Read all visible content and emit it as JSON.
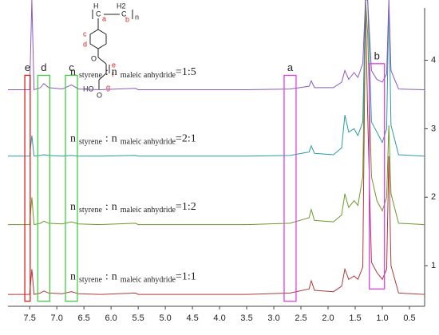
{
  "chart_data": {
    "type": "line",
    "x": [
      7.9,
      7.6,
      7.5,
      7.46,
      7.42,
      7.3,
      7.24,
      7.15,
      6.9,
      6.73,
      6.6,
      6.2,
      5.55,
      5.5,
      4.6,
      3.5,
      2.7,
      2.35,
      2.31,
      2.25,
      1.9,
      1.75,
      1.69,
      1.62,
      1.52,
      1.45,
      1.36,
      1.31,
      1.27,
      1.2,
      1.1,
      1.0,
      0.92,
      0.88,
      0.84,
      0.7,
      0.22
    ],
    "series": [
      {
        "name": "1:1",
        "color": "#b03a3a",
        "values": [
          0.58,
          0.58,
          0.58,
          0.95,
          0.58,
          0.6,
          0.63,
          0.6,
          0.59,
          0.62,
          0.59,
          0.58,
          0.6,
          0.58,
          0.58,
          0.58,
          0.6,
          0.66,
          0.78,
          0.64,
          0.62,
          0.7,
          0.95,
          0.8,
          0.85,
          0.8,
          0.98,
          4.88,
          3.2,
          1.05,
          0.9,
          0.8,
          0.95,
          2.6,
          1.0,
          0.6,
          0.58
        ]
      },
      {
        "name": "1:2",
        "color": "#6a9a2a",
        "values": [
          1.6,
          1.6,
          1.6,
          2.0,
          1.6,
          1.62,
          1.65,
          1.62,
          1.61,
          1.64,
          1.61,
          1.6,
          1.62,
          1.6,
          1.6,
          1.6,
          1.62,
          1.7,
          1.82,
          1.66,
          1.64,
          1.74,
          2.05,
          1.85,
          1.95,
          1.88,
          2.3,
          4.88,
          4.4,
          2.3,
          1.95,
          1.8,
          2.0,
          3.05,
          2.05,
          1.62,
          1.6
        ]
      },
      {
        "name": "2:1",
        "color": "#2a9aa0",
        "values": [
          2.6,
          2.6,
          2.6,
          2.9,
          2.6,
          2.61,
          2.62,
          2.61,
          2.6,
          2.61,
          2.6,
          2.6,
          2.61,
          2.6,
          2.6,
          2.6,
          2.61,
          2.66,
          2.75,
          2.64,
          2.62,
          2.72,
          3.2,
          2.95,
          3.0,
          2.9,
          3.1,
          4.88,
          4.88,
          3.1,
          2.95,
          2.8,
          3.0,
          4.88,
          3.05,
          2.62,
          2.6
        ]
      },
      {
        "name": "1:5",
        "color": "#8a5ac0",
        "values": [
          3.57,
          3.57,
          3.57,
          4.88,
          3.57,
          3.6,
          3.66,
          3.6,
          3.58,
          3.64,
          3.58,
          3.57,
          3.59,
          3.57,
          3.57,
          3.57,
          3.58,
          3.62,
          3.7,
          3.6,
          3.6,
          3.68,
          3.85,
          3.72,
          3.82,
          3.75,
          3.95,
          4.88,
          4.88,
          3.85,
          3.72,
          3.68,
          3.8,
          4.88,
          3.85,
          3.58,
          3.57
        ]
      }
    ],
    "ratio_text": {
      "n": "n",
      "first": "styrene",
      "sep": ":",
      "second": "maleic anhydride",
      "eq": "="
    },
    "boxes": [
      {
        "label": "e",
        "color": "#e02020",
        "x": [
          7.59,
          7.49
        ],
        "y": [
          0.48,
          3.78
        ]
      },
      {
        "label": "d",
        "color": "#40d040",
        "x": [
          7.35,
          7.13
        ],
        "y": [
          0.48,
          3.78
        ]
      },
      {
        "label": "c",
        "color": "#40d040",
        "x": [
          6.84,
          6.62
        ],
        "y": [
          0.48,
          3.78
        ]
      },
      {
        "label": "a",
        "color": "#e040e0",
        "x": [
          2.81,
          2.59
        ],
        "y": [
          0.48,
          3.78
        ]
      },
      {
        "label": "b",
        "color": "#e040e0",
        "x": [
          1.24,
          0.96
        ],
        "y": [
          0.66,
          3.95
        ]
      }
    ],
    "structure": {
      "atoms": [
        "H",
        "C",
        "H2",
        "C",
        "n",
        "HO",
        "O",
        "O"
      ],
      "positions": [
        "a",
        "b",
        "c",
        "d",
        "e",
        "f",
        "g"
      ]
    },
    "xlim": [
      7.9,
      0.22
    ],
    "xticks": [
      7.5,
      {
        "value": 7,
        "label": "7.0"
      },
      6.5,
      {
        "value": 6,
        "label": "6.0"
      },
      5.5,
      {
        "value": 5,
        "label": "5.0"
      },
      4.5,
      {
        "value": 4,
        "label": "4.0"
      },
      3.5,
      {
        "value": 3,
        "label": "3.0"
      },
      2.5,
      {
        "value": 2,
        "label": "2.0"
      },
      1.5,
      {
        "value": 1,
        "label": "1.0"
      },
      0.5
    ],
    "ylim": [
      0.43,
      4.88
    ],
    "yticks": [
      1,
      2,
      3,
      4
    ]
  }
}
